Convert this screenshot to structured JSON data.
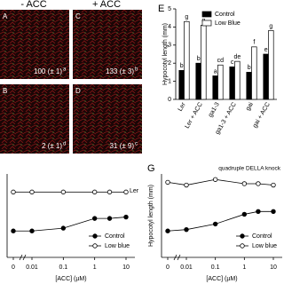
{
  "column_headers": [
    "- ACC",
    "+ ACC"
  ],
  "images": [
    {
      "panel": "A",
      "measure": "100 (± 1)",
      "letter": "a"
    },
    {
      "panel": "B",
      "measure": "2 (± 1)",
      "letter": "d"
    },
    {
      "panel": "C",
      "measure": "133 (± 3)",
      "letter": "b"
    },
    {
      "panel": "D",
      "measure": "31 (± 9)",
      "letter": "c"
    }
  ],
  "chart_data": [
    {
      "panel": "E",
      "type": "bar",
      "y_label": "Hypocotyl length (mm)",
      "categories": [
        "Ler",
        "Ler + ACC",
        "ga1-3",
        "ga1-3 + ACC",
        "gai",
        "gai + ACC"
      ],
      "series": [
        {
          "name": "Control",
          "color": "#000000",
          "values": [
            1.6,
            2.0,
            1.3,
            1.8,
            1.5,
            2.5
          ],
          "letters": [
            "b",
            "b",
            "a",
            "c",
            "b",
            "e"
          ]
        },
        {
          "name": "Low Blue",
          "color": "#ffffff",
          "values": [
            4.3,
            4.1,
            1.9,
            2.1,
            2.9,
            3.8
          ],
          "letters": [
            "g",
            "g",
            "cd",
            "de",
            "f",
            "g"
          ]
        }
      ],
      "ylim": [
        0,
        5
      ],
      "yticks": [
        0,
        1,
        2,
        3,
        4,
        5
      ],
      "legend": "upper-right"
    },
    {
      "type": "line",
      "x_label": "[ACC] (µM)",
      "annotation": "Ler",
      "x": [
        0,
        0.01,
        0.1,
        1,
        3,
        10
      ],
      "xlog": true,
      "xlim": [
        0,
        10
      ],
      "xticks": [
        0,
        0.01,
        0.1,
        1,
        10
      ],
      "ylim": [
        0,
        6
      ],
      "series": [
        {
          "name": "Control",
          "color": "#000000",
          "values": [
            1.9,
            1.9,
            2.1,
            2.8,
            2.8,
            2.9
          ]
        },
        {
          "name": "Low blue",
          "color": "#ffffff",
          "values": [
            4.7,
            4.7,
            4.7,
            4.7,
            4.7,
            4.7
          ]
        }
      ],
      "legend": "lower-right"
    },
    {
      "panel": "G",
      "type": "line",
      "title": "quadruple DELLA knock",
      "y_label": "Hypocotyl length (mm)",
      "x_label": "[ACC] (µM)",
      "x": [
        0,
        0.01,
        0.1,
        1,
        3,
        10
      ],
      "xlog": true,
      "xlim": [
        0,
        10
      ],
      "xticks": [
        0,
        0.01,
        0.1,
        1,
        10
      ],
      "ylim": [
        0,
        6
      ],
      "series": [
        {
          "name": "Control",
          "color": "#000000",
          "values": [
            1.9,
            2.0,
            2.4,
            3.1,
            3.3,
            3.3
          ]
        },
        {
          "name": "Low blue",
          "color": "#ffffff",
          "values": [
            5.4,
            5.2,
            5.6,
            5.3,
            5.3,
            5.2
          ]
        }
      ],
      "legend": "lower-right"
    }
  ]
}
